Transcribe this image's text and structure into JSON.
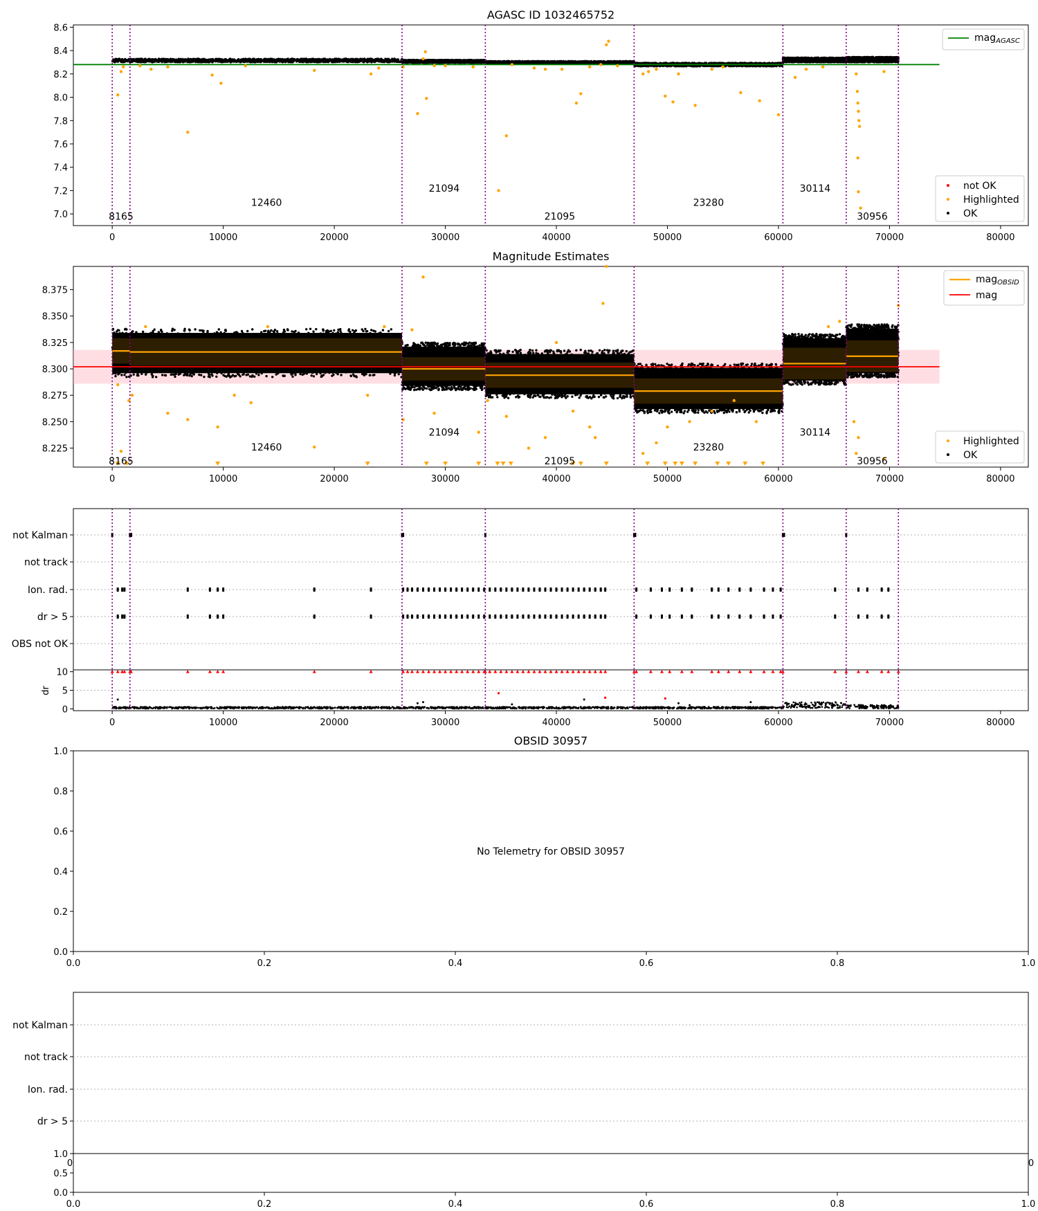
{
  "chart_data": [
    {
      "type": "scatter",
      "title": "AGASC ID 1032465752",
      "xlabel": "",
      "ylabel": "",
      "xlim": [
        -3500,
        82500
      ],
      "ylim": [
        6.9,
        8.62
      ],
      "xticks": [
        0,
        10000,
        20000,
        30000,
        40000,
        50000,
        60000,
        70000,
        80000
      ],
      "yticks": [
        7.0,
        7.2,
        7.4,
        7.6,
        7.8,
        8.0,
        8.2,
        8.4,
        8.6
      ],
      "ytick_labels": [
        "7.0",
        "7.2",
        "7.4",
        "7.6",
        "7.8",
        "8.0",
        "8.2",
        "8.4",
        "8.6"
      ],
      "obsid_boundaries": [
        0,
        1600,
        26100,
        33600,
        47000,
        60400,
        66100,
        70800
      ],
      "obsid_labels": [
        {
          "text": "8165",
          "x": 800,
          "y": 6.98
        },
        {
          "text": "12460",
          "x": 13900,
          "y": 7.1
        },
        {
          "text": "21094",
          "x": 29900,
          "y": 7.22
        },
        {
          "text": "21095",
          "x": 40300,
          "y": 6.98
        },
        {
          "text": "23280",
          "x": 53700,
          "y": 7.1
        },
        {
          "text": "30114",
          "x": 63300,
          "y": 7.22
        },
        {
          "text": "30956",
          "x": 68450,
          "y": 6.98
        }
      ],
      "agasc_mag": 8.28,
      "ok_band": [
        {
          "x0": 0,
          "x1": 26100,
          "y0": 8.3,
          "y1": 8.33
        },
        {
          "x0": 26100,
          "x1": 33600,
          "y0": 8.295,
          "y1": 8.32
        },
        {
          "x0": 33600,
          "x1": 47000,
          "y0": 8.285,
          "y1": 8.31
        },
        {
          "x0": 47000,
          "x1": 60400,
          "y0": 8.265,
          "y1": 8.295
        },
        {
          "x0": 60400,
          "x1": 66100,
          "y0": 8.3,
          "y1": 8.34
        },
        {
          "x0": 66100,
          "x1": 70800,
          "y0": 8.3,
          "y1": 8.345
        }
      ],
      "highlighted": [
        [
          500,
          8.02
        ],
        [
          800,
          8.22
        ],
        [
          1000,
          8.26
        ],
        [
          2500,
          8.27
        ],
        [
          3500,
          8.24
        ],
        [
          5000,
          8.26
        ],
        [
          6800,
          7.7
        ],
        [
          9000,
          8.19
        ],
        [
          9800,
          8.12
        ],
        [
          12000,
          8.27
        ],
        [
          18200,
          8.23
        ],
        [
          23300,
          8.2
        ],
        [
          24000,
          8.25
        ],
        [
          26200,
          8.26
        ],
        [
          27500,
          7.86
        ],
        [
          28000,
          8.33
        ],
        [
          28200,
          8.39
        ],
        [
          28300,
          7.99
        ],
        [
          29000,
          8.27
        ],
        [
          30000,
          8.27
        ],
        [
          32500,
          8.26
        ],
        [
          34800,
          7.2
        ],
        [
          35500,
          7.67
        ],
        [
          36000,
          8.28
        ],
        [
          38000,
          8.25
        ],
        [
          39000,
          8.24
        ],
        [
          40500,
          8.24
        ],
        [
          41800,
          7.95
        ],
        [
          42200,
          8.03
        ],
        [
          43000,
          8.26
        ],
        [
          44000,
          8.28
        ],
        [
          44500,
          8.45
        ],
        [
          44700,
          8.48
        ],
        [
          45500,
          8.27
        ],
        [
          47800,
          8.2
        ],
        [
          48300,
          8.22
        ],
        [
          49000,
          8.24
        ],
        [
          49800,
          8.01
        ],
        [
          50500,
          7.96
        ],
        [
          51000,
          8.2
        ],
        [
          52500,
          7.93
        ],
        [
          54000,
          8.24
        ],
        [
          55000,
          8.26
        ],
        [
          56600,
          8.04
        ],
        [
          58300,
          7.97
        ],
        [
          60000,
          7.85
        ],
        [
          61500,
          8.17
        ],
        [
          62500,
          8.24
        ],
        [
          64000,
          8.26
        ],
        [
          67000,
          8.2
        ],
        [
          67100,
          8.05
        ],
        [
          67150,
          7.95
        ],
        [
          67200,
          7.88
        ],
        [
          67250,
          7.8
        ],
        [
          67300,
          7.75
        ],
        [
          67150,
          7.48
        ],
        [
          67200,
          7.19
        ],
        [
          67400,
          7.05
        ],
        [
          69500,
          8.22
        ]
      ],
      "legend_top": [
        "mag<sub>AGASC</sub>"
      ],
      "legend_bottom": [
        "not OK",
        "Highlighted",
        "OK"
      ]
    },
    {
      "type": "scatter",
      "title": "Magnitude Estimates",
      "xlabel": "",
      "ylabel": "",
      "xlim": [
        -3500,
        82500
      ],
      "ylim": [
        8.207,
        8.397
      ],
      "xticks": [
        0,
        10000,
        20000,
        30000,
        40000,
        50000,
        60000,
        70000,
        80000
      ],
      "yticks": [
        8.225,
        8.25,
        8.275,
        8.3,
        8.325,
        8.35,
        8.375
      ],
      "ytick_labels": [
        "8.225",
        "8.250",
        "8.275",
        "8.300",
        "8.325",
        "8.350",
        "8.375"
      ],
      "obsid_boundaries": [
        0,
        1600,
        26100,
        33600,
        47000,
        60400,
        66100,
        70800
      ],
      "obsid_labels": [
        {
          "text": "8165",
          "x": 800,
          "y": 8.213
        },
        {
          "text": "12460",
          "x": 13900,
          "y": 8.226
        },
        {
          "text": "21094",
          "x": 29900,
          "y": 8.24
        },
        {
          "text": "21095",
          "x": 40300,
          "y": 8.213
        },
        {
          "text": "23280",
          "x": 53700,
          "y": 8.226
        },
        {
          "text": "30114",
          "x": 63300,
          "y": 8.24
        },
        {
          "text": "30956",
          "x": 68450,
          "y": 8.213
        }
      ],
      "mag": 8.302,
      "mag_band": [
        8.286,
        8.318
      ],
      "mag_obsid": [
        {
          "x0": 0,
          "x1": 1600,
          "y": 8.317,
          "ylo": 8.305,
          "yhi": 8.329
        },
        {
          "x0": 1600,
          "x1": 26100,
          "y": 8.316,
          "ylo": 8.303,
          "yhi": 8.329
        },
        {
          "x0": 26100,
          "x1": 33600,
          "y": 8.3,
          "ylo": 8.289,
          "yhi": 8.311
        },
        {
          "x0": 33600,
          "x1": 47000,
          "y": 8.294,
          "ylo": 8.282,
          "yhi": 8.306
        },
        {
          "x0": 47000,
          "x1": 60400,
          "y": 8.279,
          "ylo": 8.267,
          "yhi": 8.291
        },
        {
          "x0": 60400,
          "x1": 66100,
          "y": 8.305,
          "ylo": 8.29,
          "yhi": 8.32
        },
        {
          "x0": 66100,
          "x1": 70800,
          "y": 8.312,
          "ylo": 8.297,
          "yhi": 8.327
        }
      ],
      "ok_spread": [
        {
          "x0": 0,
          "x1": 26100,
          "y0": 8.292,
          "y1": 8.338
        },
        {
          "x0": 26100,
          "x1": 33600,
          "y0": 8.28,
          "y1": 8.325
        },
        {
          "x0": 33600,
          "x1": 47000,
          "y0": 8.272,
          "y1": 8.318
        },
        {
          "x0": 47000,
          "x1": 60400,
          "y0": 8.258,
          "y1": 8.305
        },
        {
          "x0": 60400,
          "x1": 66100,
          "y0": 8.285,
          "y1": 8.333
        },
        {
          "x0": 66100,
          "x1": 70800,
          "y0": 8.292,
          "y1": 8.342
        }
      ],
      "highlighted": [
        [
          500,
          8.285
        ],
        [
          800,
          8.222
        ],
        [
          1500,
          8.27
        ],
        [
          1800,
          8.275
        ],
        [
          3000,
          8.34
        ],
        [
          5000,
          8.258
        ],
        [
          6800,
          8.252
        ],
        [
          9500,
          8.245
        ],
        [
          11000,
          8.275
        ],
        [
          12500,
          8.268
        ],
        [
          14000,
          8.34
        ],
        [
          18200,
          8.226
        ],
        [
          23000,
          8.275
        ],
        [
          24500,
          8.34
        ],
        [
          26200,
          8.252
        ],
        [
          27000,
          8.337
        ],
        [
          28000,
          8.387
        ],
        [
          29000,
          8.258
        ],
        [
          33000,
          8.24
        ],
        [
          33800,
          8.27
        ],
        [
          35500,
          8.255
        ],
        [
          37500,
          8.225
        ],
        [
          39000,
          8.235
        ],
        [
          40000,
          8.325
        ],
        [
          41500,
          8.26
        ],
        [
          43000,
          8.245
        ],
        [
          43500,
          8.235
        ],
        [
          44200,
          8.362
        ],
        [
          44500,
          8.397
        ],
        [
          47800,
          8.22
        ],
        [
          49000,
          8.23
        ],
        [
          50000,
          8.245
        ],
        [
          52000,
          8.25
        ],
        [
          54000,
          8.26
        ],
        [
          56000,
          8.27
        ],
        [
          58000,
          8.25
        ],
        [
          64500,
          8.34
        ],
        [
          65500,
          8.345
        ],
        [
          66800,
          8.25
        ],
        [
          67000,
          8.22
        ],
        [
          67200,
          8.235
        ],
        [
          69500,
          8.215
        ],
        [
          70800,
          8.36
        ]
      ],
      "legend_top": [
        "mag<sub>OBSID</sub>",
        "mag"
      ],
      "legend_bottom": [
        "Highlighted",
        "OK"
      ]
    },
    {
      "type": "scatter",
      "title": "",
      "xlabel": "",
      "ylabel": "",
      "xlim": [
        -3500,
        82500
      ],
      "categories": [
        "not Kalman",
        "not track",
        "Ion. rad.",
        "dr > 5",
        "OBS not OK"
      ],
      "obsid_boundaries": [
        0,
        1600,
        26100,
        33600,
        47000,
        60400,
        66100,
        70800
      ],
      "flags": {
        "not Kalman": [
          0,
          1600,
          1700,
          26100,
          26200,
          33600,
          47000,
          47100,
          60400,
          60500,
          66100
        ],
        "not track": [],
        "Ion. rad.": [
          500,
          900,
          1100,
          6800,
          8800,
          9500,
          10000,
          18200,
          23300,
          26200,
          26600,
          27000,
          27500,
          28000,
          28500,
          29000,
          29500,
          30000,
          30500,
          31000,
          31500,
          32000,
          32500,
          33000,
          33500,
          34000,
          34500,
          35000,
          35500,
          36000,
          36500,
          37000,
          37500,
          38000,
          38500,
          39000,
          39500,
          40000,
          40500,
          41000,
          41500,
          42000,
          42500,
          43000,
          43500,
          44000,
          44400,
          47200,
          48500,
          49500,
          50200,
          51300,
          52200,
          54000,
          54600,
          55500,
          56500,
          57500,
          58700,
          59500,
          60200,
          65100,
          67200,
          68000,
          69300,
          69900
        ],
        "dr > 5": [
          500,
          900,
          1100,
          6800,
          8800,
          9500,
          10000,
          18200,
          23300,
          26200,
          26600,
          27000,
          27500,
          28000,
          28500,
          29000,
          29500,
          30000,
          30500,
          31000,
          31500,
          32000,
          32500,
          33000,
          33500,
          34000,
          34500,
          35000,
          35500,
          36000,
          36500,
          37000,
          37500,
          38000,
          38500,
          39000,
          39500,
          40000,
          40500,
          41000,
          41500,
          42000,
          42500,
          43000,
          43500,
          44000,
          44400,
          47200,
          48500,
          49500,
          50200,
          51300,
          52200,
          54000,
          54600,
          55500,
          56500,
          57500,
          58700,
          59500,
          60200,
          65100,
          67200,
          68000,
          69300,
          69900
        ],
        "OBS not OK": []
      }
    },
    {
      "type": "scatter",
      "title": "",
      "xlabel": "",
      "ylabel": "dr",
      "xlim": [
        -3500,
        82500
      ],
      "ylim": [
        -0.5,
        10.5
      ],
      "xticks": [
        0,
        10000,
        20000,
        30000,
        40000,
        50000,
        60000,
        70000,
        80000
      ],
      "yticks": [
        0,
        5,
        10
      ],
      "ytick_labels": [
        "0",
        "5",
        "10"
      ],
      "obsid_boundaries": [
        0,
        1600,
        26100,
        33600,
        47000,
        60400,
        66100,
        70800
      ],
      "dr_level": [
        {
          "x0": 0,
          "x1": 60400,
          "y": 0.3
        },
        {
          "x0": 60400,
          "x1": 66100,
          "y": 1.0
        },
        {
          "x0": 66100,
          "x1": 70800,
          "y": 0.6
        }
      ],
      "dr_outliers": [
        [
          500,
          2.5
        ],
        [
          27500,
          1.5
        ],
        [
          28000,
          1.8
        ],
        [
          34800,
          4.2
        ],
        [
          36000,
          1.2
        ],
        [
          42500,
          2.5
        ],
        [
          44400,
          3.0
        ],
        [
          49800,
          2.8
        ],
        [
          51000,
          1.5
        ],
        [
          52000,
          1.0
        ],
        [
          57500,
          1.8
        ]
      ]
    },
    {
      "type": "scatter",
      "title": "OBSID 30957",
      "xlabel": "",
      "ylabel": "",
      "xlim": [
        0,
        1
      ],
      "ylim": [
        0,
        1
      ],
      "xticks": [
        0,
        0.2,
        0.4,
        0.6,
        0.8,
        1.0
      ],
      "xtick_labels": [
        "0.0",
        "0.2",
        "0.4",
        "0.6",
        "0.8",
        "1.0"
      ],
      "yticks": [
        0,
        0.2,
        0.4,
        0.6,
        0.8,
        1.0
      ],
      "ytick_labels": [
        "0.0",
        "0.2",
        "0.4",
        "0.6",
        "0.8",
        "1.0"
      ],
      "annotation": "No Telemetry for OBSID 30957"
    },
    {
      "type": "scatter",
      "title": "",
      "xlabel": "",
      "ylabel": "",
      "xlim": [
        0,
        1
      ],
      "categories": [
        "not Kalman",
        "not track",
        "Ion. rad.",
        "dr > 5"
      ],
      "partial_xtick_labels": [
        "0",
        "0"
      ]
    },
    {
      "type": "scatter",
      "title": "",
      "xlabel": "",
      "ylabel": "",
      "xlim": [
        0,
        1
      ],
      "ylim": [
        0,
        1
      ],
      "xticks": [
        0,
        0.2,
        0.4,
        0.6,
        0.8,
        1.0
      ],
      "xtick_labels": [
        "0.0",
        "0.2",
        "0.4",
        "0.6",
        "0.8",
        "1.0"
      ],
      "yticks": [
        0,
        0.5,
        1.0
      ],
      "ytick_labels": [
        "0.0",
        "0.5",
        "1.0"
      ]
    }
  ]
}
